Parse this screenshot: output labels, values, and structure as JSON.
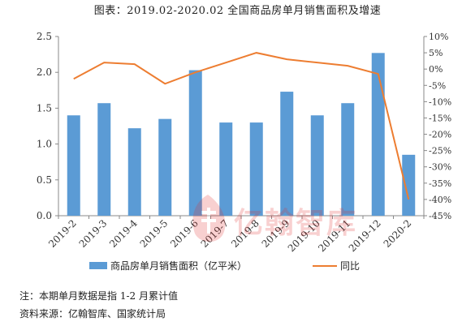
{
  "title": "图表：2019.02-2020.02 全国商品房单月销售面积及增速",
  "chart_data": {
    "type": "bar",
    "categories": [
      "2019-2",
      "2019-3",
      "2019-4",
      "2019-5",
      "2019-6",
      "2019-7",
      "2019-8",
      "2019-9",
      "2019-10",
      "2019-11",
      "2019-12",
      "2020-2"
    ],
    "series": [
      {
        "name": "商品房单月销售面积（亿平米）",
        "type": "bar",
        "axis": "left",
        "color": "#5b9bd5",
        "values": [
          1.4,
          1.57,
          1.22,
          1.35,
          2.03,
          1.3,
          1.3,
          1.73,
          1.4,
          1.57,
          2.27,
          0.85
        ]
      },
      {
        "name": "同比",
        "type": "line",
        "axis": "right",
        "color": "#ed7d31",
        "values": [
          -3.0,
          2.0,
          1.5,
          -4.5,
          -1.0,
          2.0,
          5.0,
          3.0,
          2.0,
          1.0,
          -1.5,
          -40.0
        ]
      }
    ],
    "left_axis": {
      "min": 0,
      "max": 2.5,
      "ticks": [
        "0.0",
        "0.5",
        "1.0",
        "1.5",
        "2.0",
        "2.5"
      ]
    },
    "right_axis": {
      "min": -45,
      "max": 10,
      "ticks": [
        "10%",
        "5%",
        "0%",
        "-5%",
        "-10%",
        "-15%",
        "-20%",
        "-25%",
        "-30%",
        "-35%",
        "-40%",
        "-45%"
      ]
    },
    "grid": false,
    "legend_position": "bottom"
  },
  "notes": {
    "line1": "注：本期单月数据是指 1-2 月累计值",
    "line2": "资料来源：亿翰智库、国家统计局"
  },
  "watermark": {
    "text": "亿翰智库"
  }
}
